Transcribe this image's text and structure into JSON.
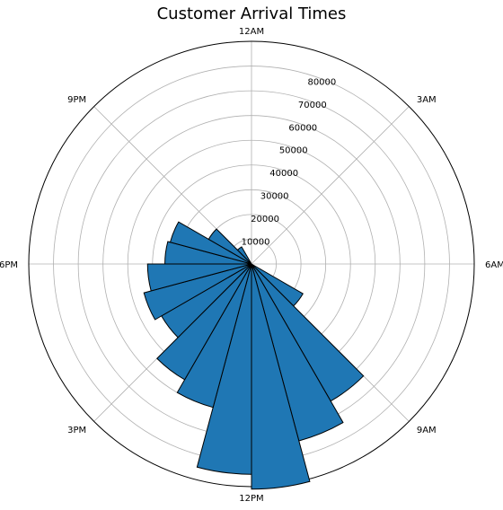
{
  "chart_data": {
    "type": "bar",
    "subtype": "polar",
    "title": "Customer Arrival Times",
    "direction": "clockwise",
    "zero_location": "top",
    "angle_labels": [
      "12AM",
      "3AM",
      "6AM",
      "9AM",
      "12PM",
      "3PM",
      "6PM",
      "9PM"
    ],
    "radial_ticks": [
      10000,
      20000,
      30000,
      40000,
      50000,
      60000,
      70000,
      80000
    ],
    "rlim": [
      0,
      90000
    ],
    "grid": true,
    "bar_color": "#1f77b4",
    "edge_color": "#000000",
    "categories": [
      "0",
      "1",
      "2",
      "3",
      "4",
      "5",
      "6",
      "7",
      "8",
      "9",
      "10",
      "11",
      "12",
      "13",
      "14",
      "15",
      "16",
      "17",
      "18",
      "19",
      "20",
      "21",
      "22",
      "23"
    ],
    "values": [
      0,
      0,
      0,
      0,
      0,
      0,
      0,
      0,
      24000,
      64000,
      74000,
      91000,
      85000,
      60000,
      54000,
      42000,
      45000,
      42000,
      35000,
      34000,
      20000,
      8000,
      0,
      0
    ]
  }
}
